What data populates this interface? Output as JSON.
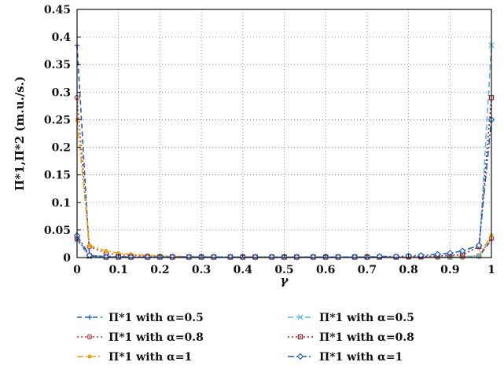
{
  "chart_data": {
    "type": "line",
    "title": "",
    "xlabel": "γ",
    "ylabel": "Π*1,Π*2 (m.u./s.)",
    "xlim": [
      0,
      1
    ],
    "ylim": [
      0,
      0.45
    ],
    "x_ticks": [
      "0",
      "0.1",
      "0.2",
      "0.3",
      "0.4",
      "0.5",
      "0.6",
      "0.7",
      "0.8",
      "0.9",
      "1"
    ],
    "y_ticks": [
      "0",
      "0.05",
      "0.1",
      "0.15",
      "0.2",
      "0.25",
      "0.3",
      "0.35",
      "0.4",
      "0.45"
    ],
    "grid": true,
    "legend_position": "below",
    "x": [
      0,
      0.03,
      0.07,
      0.1,
      0.13,
      0.17,
      0.2,
      0.23,
      0.27,
      0.3,
      0.33,
      0.37,
      0.4,
      0.43,
      0.47,
      0.5,
      0.53,
      0.57,
      0.6,
      0.63,
      0.67,
      0.7,
      0.73,
      0.77,
      0.8,
      0.83,
      0.87,
      0.9,
      0.93,
      0.97,
      1
    ],
    "series": [
      {
        "name": "Π*1 with α=0.5",
        "color": "#1f5fbf",
        "dash": "6,4",
        "marker": "plus",
        "values": [
          0.385,
          0.003,
          0.002,
          0.002,
          0.001,
          0.001,
          0.001,
          0.001,
          0.001,
          0.001,
          0.001,
          0.001,
          0.001,
          0.001,
          0.001,
          0.001,
          0.001,
          0.001,
          0.001,
          0.001,
          0.001,
          0.001,
          0.001,
          0.001,
          0.001,
          0.001,
          0.001,
          0.001,
          0.001,
          0.002,
          0.032
        ]
      },
      {
        "name": "Π*1 with α=0.8",
        "color": "#c0392b",
        "dash": "2,3",
        "marker": "circle",
        "values": [
          0.29,
          0.02,
          0.008,
          0.005,
          0.004,
          0.003,
          0.002,
          0.002,
          0.001,
          0.001,
          0.001,
          0.001,
          0.001,
          0.001,
          0.001,
          0.001,
          0.001,
          0.001,
          0.001,
          0.001,
          0.001,
          0.001,
          0.001,
          0.001,
          0.001,
          0.001,
          0.001,
          0.001,
          0.001,
          0.003,
          0.035
        ]
      },
      {
        "name": "Π*1 with α=1",
        "color": "#e8a317",
        "dash": "8,3,2,3",
        "marker": "dot",
        "values": [
          0.25,
          0.022,
          0.012,
          0.008,
          0.006,
          0.004,
          0.003,
          0.002,
          0.002,
          0.002,
          0.001,
          0.001,
          0.001,
          0.001,
          0.001,
          0.001,
          0.001,
          0.001,
          0.001,
          0.001,
          0.001,
          0.001,
          0.001,
          0.001,
          0.001,
          0.001,
          0.001,
          0.001,
          0.001,
          0.004,
          0.04
        ]
      },
      {
        "name": "Π*1 with α=0.5",
        "color": "#5bb8e6",
        "dash": "7,4",
        "marker": "x",
        "values": [
          0.032,
          0.002,
          0.001,
          0.001,
          0.001,
          0.001,
          0.001,
          0.001,
          0.001,
          0.001,
          0.001,
          0.001,
          0.001,
          0.001,
          0.001,
          0.001,
          0.001,
          0.001,
          0.001,
          0.001,
          0.001,
          0.001,
          0.001,
          0.001,
          0.001,
          0.001,
          0.001,
          0.001,
          0.002,
          0.003,
          0.385
        ]
      },
      {
        "name": "Π*1 with α=0.8",
        "color": "#9b1c1c",
        "dash": "2,3",
        "marker": "square",
        "values": [
          0.035,
          0.003,
          0.001,
          0.001,
          0.001,
          0.001,
          0.001,
          0.001,
          0.001,
          0.001,
          0.001,
          0.001,
          0.001,
          0.001,
          0.001,
          0.001,
          0.001,
          0.001,
          0.001,
          0.001,
          0.001,
          0.001,
          0.001,
          0.001,
          0.002,
          0.002,
          0.003,
          0.004,
          0.005,
          0.02,
          0.29
        ]
      },
      {
        "name": "Π*1 with α=1",
        "color": "#1f5fbf",
        "dash": "8,3,2,3",
        "marker": "diamond",
        "values": [
          0.04,
          0.004,
          0.001,
          0.001,
          0.001,
          0.001,
          0.001,
          0.001,
          0.001,
          0.001,
          0.001,
          0.001,
          0.001,
          0.001,
          0.001,
          0.001,
          0.001,
          0.001,
          0.001,
          0.001,
          0.001,
          0.001,
          0.002,
          0.002,
          0.003,
          0.004,
          0.006,
          0.008,
          0.012,
          0.022,
          0.25
        ]
      }
    ]
  }
}
